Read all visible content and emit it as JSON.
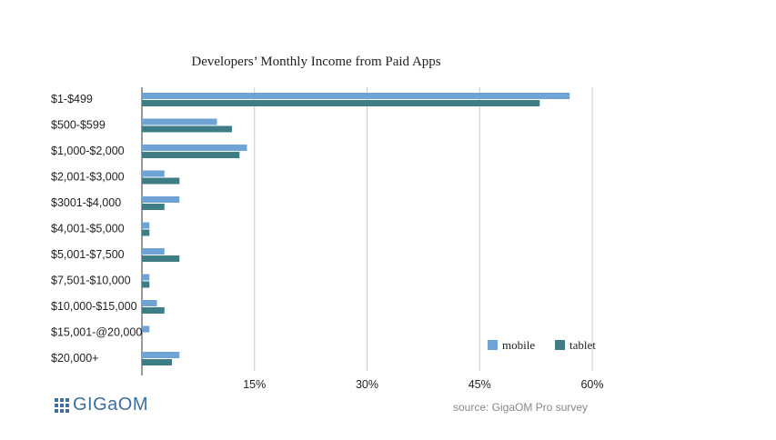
{
  "chart_data": {
    "type": "bar",
    "orientation": "horizontal",
    "title": "Developers’ Monthly Income from Paid Apps",
    "categories": [
      "$1-$499",
      "$500-$599",
      "$1,000-$2,000",
      "$2,001-$3,000",
      "$3001-$4,000",
      "$4,001-$5,000",
      "$5,001-$7,500",
      "$7,501-$10,000",
      "$10,000-$15,000",
      "$15,001-@20,000",
      "$20,000+"
    ],
    "series": [
      {
        "name": "mobile",
        "color": "#6fa3d4",
        "values": [
          57,
          10,
          14,
          3,
          5,
          1,
          3,
          1,
          2,
          1,
          5
        ]
      },
      {
        "name": "tablet",
        "color": "#3e7c86",
        "values": [
          53,
          12,
          13,
          5,
          3,
          1,
          5,
          1,
          3,
          0,
          4
        ]
      }
    ],
    "xlim": [
      0,
      60
    ],
    "xticks": [
      15,
      30,
      45,
      60
    ],
    "tick_suffix": "%",
    "grid": "vertical",
    "legend_position": "bottom-right"
  },
  "footer": {
    "logo_text": "GIGaOM",
    "source": "source: GigaOM Pro survey"
  },
  "colors": {
    "logo": "#3d6fa0",
    "grid": "#cccccc",
    "axis": "#333333"
  }
}
